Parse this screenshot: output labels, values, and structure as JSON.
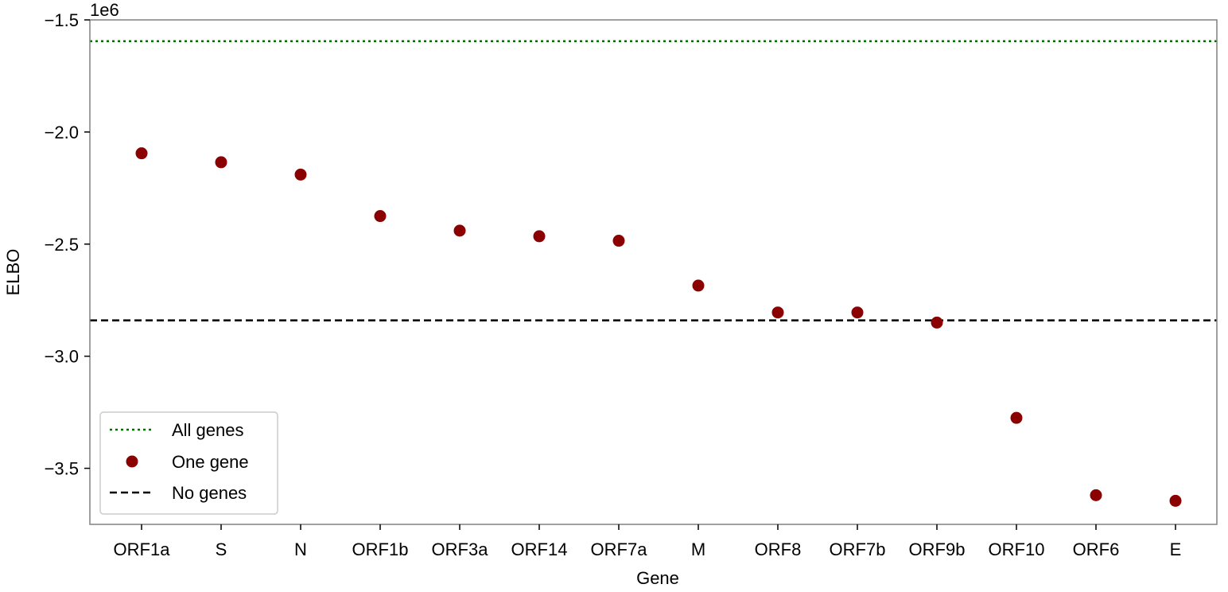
{
  "chart_data": {
    "type": "scatter",
    "xlabel": "Gene",
    "ylabel": "ELBO",
    "y_offset_label": "1e6",
    "ylim": [
      -3.75,
      -1.5
    ],
    "yticks": [
      -1.5,
      -2.0,
      -2.5,
      -3.0,
      -3.5
    ],
    "ytick_labels": [
      "−1.5",
      "−2.0",
      "−2.5",
      "−3.0",
      "−3.5"
    ],
    "categories": [
      "ORF1a",
      "S",
      "N",
      "ORF1b",
      "ORF3a",
      "ORF14",
      "ORF7a",
      "M",
      "ORF8",
      "ORF7b",
      "ORF9b",
      "ORF10",
      "ORF6",
      "E"
    ],
    "series": [
      {
        "name": "One gene",
        "color": "#8b0000",
        "marker": "circle",
        "values": [
          -2.095,
          -2.135,
          -2.19,
          -2.375,
          -2.44,
          -2.465,
          -2.485,
          -2.685,
          -2.805,
          -2.805,
          -2.85,
          -3.275,
          -3.62,
          -3.645
        ]
      }
    ],
    "reference_lines": [
      {
        "name": "All genes",
        "value": -1.595,
        "color": "#007000",
        "style": "dotted"
      },
      {
        "name": "No genes",
        "value": -2.84,
        "color": "#000000",
        "style": "dashed"
      }
    ],
    "legend": {
      "placement": "lower-left",
      "entries": [
        "All genes",
        "One gene",
        "No genes"
      ]
    },
    "grid": false
  }
}
